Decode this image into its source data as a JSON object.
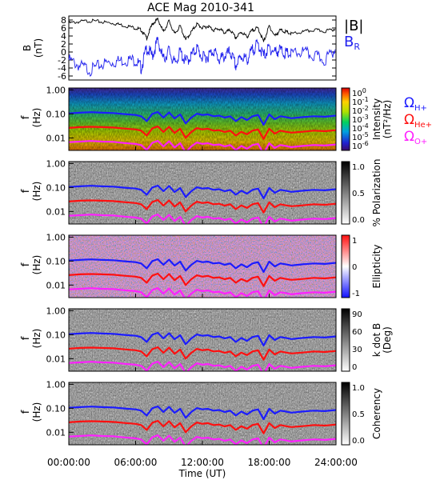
{
  "chart_data": {
    "type": "line",
    "title": "ACE Mag 2010-341",
    "xlabel": "Time (UT)",
    "x_ticks": [
      "00:00:00",
      "06:00:00",
      "12:00:00",
      "18:00:00",
      "24:00:00"
    ],
    "x_range_hours": [
      0,
      24
    ],
    "colors": {
      "B": "#000000",
      "BR": "#2222ee",
      "H": "#1c1cff",
      "He": "#ff1010",
      "O": "#ff20ff"
    },
    "field_panel": {
      "ylabel": "B",
      "yunit": "(nT)",
      "ylim": [
        -7,
        9
      ],
      "y_ticks": [
        "8",
        "6",
        "4",
        "2",
        "0",
        "-2",
        "-4",
        "-6"
      ],
      "y_tick_values": [
        8,
        6,
        4,
        2,
        0,
        -2,
        -4,
        -6
      ],
      "legend": {
        "total": "|B|",
        "radial": "B",
        "radial_sub": "R"
      },
      "series": [
        {
          "key": "B",
          "x": [
            0,
            1,
            2,
            3,
            4,
            5,
            6,
            6.5,
            7,
            7.5,
            8,
            8.5,
            9,
            9.5,
            10,
            10.5,
            11,
            11.5,
            12,
            12.5,
            13,
            13.5,
            14,
            14.5,
            15,
            15.5,
            16,
            16.5,
            17,
            17.5,
            18,
            18.5,
            19,
            19.5,
            20,
            21,
            22,
            23,
            24
          ],
          "y": [
            7.2,
            7.6,
            7.8,
            7.5,
            7.2,
            6.6,
            6.0,
            5.5,
            3.5,
            7.0,
            8.2,
            5.0,
            7.8,
            4.5,
            6.5,
            3.0,
            5.0,
            7.0,
            6.0,
            6.5,
            5.5,
            5.8,
            4.8,
            5.5,
            3.5,
            5.0,
            3.8,
            5.5,
            6.0,
            2.5,
            6.5,
            4.0,
            5.5,
            5.0,
            4.5,
            5.0,
            5.5,
            5.2,
            5.8
          ]
        },
        {
          "key": "BR",
          "x": [
            0,
            1,
            2,
            3,
            4,
            5,
            6,
            6.5,
            7,
            7.5,
            8,
            8.5,
            9,
            9.5,
            10,
            10.5,
            11,
            11.5,
            12,
            12.5,
            13,
            13.5,
            14,
            14.5,
            15,
            15.5,
            16,
            16.5,
            17,
            17.5,
            18,
            18.5,
            19,
            19.5,
            20,
            21,
            22,
            23,
            24
          ],
          "y": [
            -2.0,
            -3.5,
            -4.5,
            -3.0,
            -2.5,
            -2.0,
            -2.0,
            -4.0,
            1.0,
            -1.0,
            3.0,
            -2.0,
            0.5,
            -3.0,
            0.0,
            -2.5,
            -1.0,
            1.0,
            -1.5,
            -1.0,
            0.5,
            -2.0,
            -1.0,
            0.0,
            -3.5,
            -1.0,
            -2.0,
            0.5,
            2.0,
            -1.0,
            1.0,
            0.0,
            0.5,
            -0.5,
            -0.5,
            0.0,
            -1.0,
            -2.0,
            1.0
          ]
        }
      ]
    },
    "freq_axis": {
      "ylabel": "f",
      "yunit": "(Hz)",
      "scale": "log",
      "ylim": [
        0.003,
        1.2
      ],
      "y_ticks": [
        "1.00",
        "0.10",
        "0.01"
      ],
      "y_tick_values": [
        1,
        0.1,
        0.01
      ]
    },
    "gyro_lines": {
      "x": [
        0,
        1,
        2,
        3,
        4,
        5,
        6,
        6.5,
        7,
        7.5,
        8,
        8.5,
        9,
        9.5,
        10,
        10.5,
        11,
        11.5,
        12,
        12.5,
        13,
        13.5,
        14,
        14.5,
        15,
        15.5,
        16,
        16.5,
        17,
        17.5,
        18,
        18.5,
        19,
        19.5,
        20,
        21,
        22,
        23,
        24
      ],
      "H": [
        0.105,
        0.112,
        0.118,
        0.112,
        0.108,
        0.098,
        0.09,
        0.08,
        0.05,
        0.1,
        0.12,
        0.07,
        0.115,
        0.065,
        0.095,
        0.04,
        0.07,
        0.102,
        0.09,
        0.095,
        0.08,
        0.085,
        0.07,
        0.08,
        0.05,
        0.073,
        0.055,
        0.08,
        0.09,
        0.035,
        0.095,
        0.06,
        0.08,
        0.073,
        0.066,
        0.073,
        0.08,
        0.076,
        0.085
      ],
      "He": [
        0.026,
        0.028,
        0.029,
        0.028,
        0.027,
        0.0245,
        0.0225,
        0.02,
        0.0125,
        0.025,
        0.03,
        0.0175,
        0.029,
        0.016,
        0.024,
        0.01,
        0.0175,
        0.0255,
        0.0225,
        0.024,
        0.02,
        0.021,
        0.0175,
        0.02,
        0.0125,
        0.018,
        0.014,
        0.02,
        0.0225,
        0.009,
        0.024,
        0.015,
        0.02,
        0.018,
        0.0165,
        0.018,
        0.02,
        0.019,
        0.021
      ],
      "O": [
        0.0066,
        0.007,
        0.0074,
        0.007,
        0.0068,
        0.0061,
        0.0056,
        0.005,
        0.0031,
        0.0062,
        0.0075,
        0.0044,
        0.0072,
        0.004,
        0.006,
        0.0025,
        0.0044,
        0.0064,
        0.0056,
        0.006,
        0.005,
        0.0053,
        0.0044,
        0.005,
        0.0031,
        0.0046,
        0.0035,
        0.005,
        0.0056,
        0.0022,
        0.006,
        0.0038,
        0.005,
        0.0046,
        0.0041,
        0.0046,
        0.005,
        0.0048,
        0.0053
      ]
    },
    "spectrogram_panels": [
      {
        "key": "intensity",
        "colorbar": "rainbow",
        "cb_ticks": [
          "10^0",
          "10^-1",
          "10^-2",
          "10^-3",
          "10^-4",
          "10^-5",
          "10^-6"
        ],
        "cb_label": [
          "Intensity",
          "(nT²/Hz)"
        ],
        "legend": [
          {
            "sym": "Ω",
            "sub": "H+",
            "key": "H"
          },
          {
            "sym": "Ω",
            "sub": "He+",
            "key": "He"
          },
          {
            "sym": "Ω",
            "sub": "O+",
            "key": "O"
          }
        ]
      },
      {
        "key": "polarization",
        "colorbar": "gray",
        "cb_ticks": [
          "1.0",
          "0.5",
          "0.0"
        ],
        "cb_label": [
          "% Polarization"
        ]
      },
      {
        "key": "ellipticity",
        "colorbar": "bwr",
        "cb_ticks": [
          "1",
          "0",
          "-1"
        ],
        "cb_label": [
          "Ellipticity"
        ]
      },
      {
        "key": "kdotb",
        "colorbar": "gray",
        "cb_ticks": [
          "90",
          "60",
          "30",
          "0"
        ],
        "cb_label": [
          "k dot B",
          "(Deg)"
        ]
      },
      {
        "key": "coherency",
        "colorbar": "gray",
        "cb_ticks": [
          "1.0",
          "0.5",
          "0.0"
        ],
        "cb_label": [
          "Coherency"
        ]
      }
    ]
  }
}
